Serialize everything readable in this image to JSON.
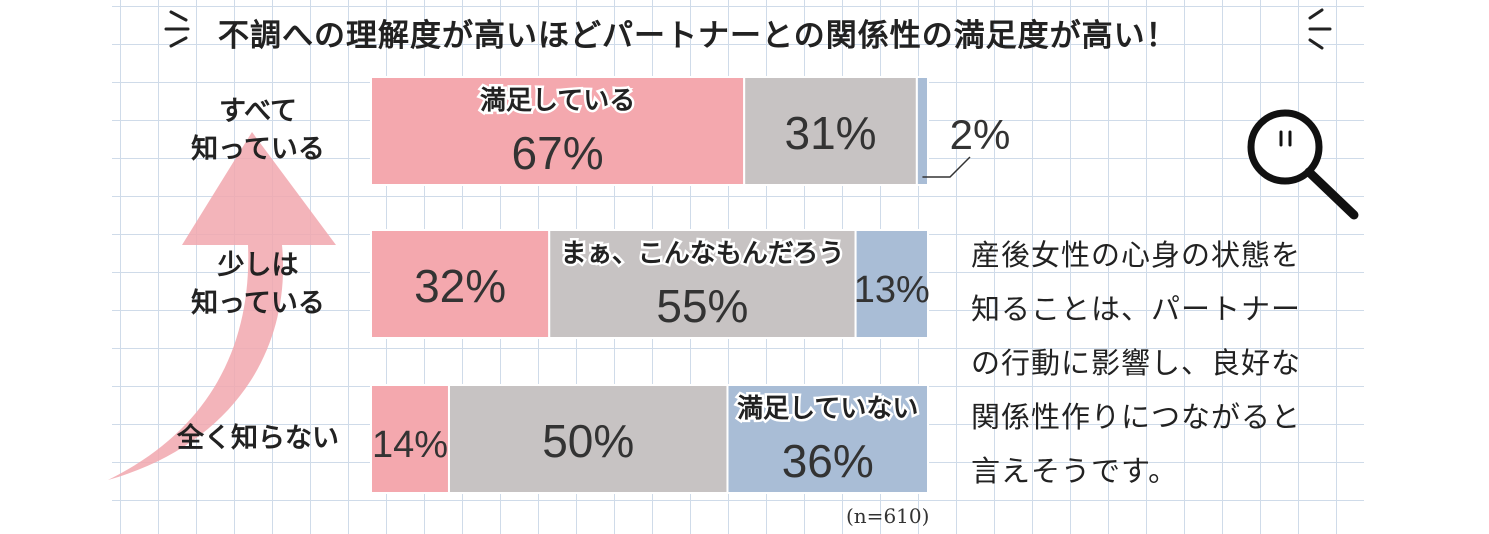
{
  "headline": "不調への理解度が高いほどパートナーとの関係性の満足度が高い！",
  "note": {
    "lines": [
      "産後女性の心身の状態を",
      "知ることは、パートナー",
      "の行動に影響し、良好な",
      "関係性作りにつながると",
      "言えそうです。"
    ]
  },
  "sample_size": "(n=610)",
  "icons": [
    "zigzag-left-icon",
    "zigzag-right-icon",
    "magnifier-icon",
    "up-arrow-icon"
  ],
  "colors": {
    "satisfied": "#f4a8ae",
    "neutral": "#c7c3c3",
    "unsatisfied": "#a9bdd6",
    "arrow": "#f1a7ae"
  },
  "chart_data": {
    "type": "bar",
    "orientation": "horizontal",
    "stacked": true,
    "categories": [
      "すべて\n知っている",
      "少しは\n知っている",
      "全く知らない"
    ],
    "category_lines": [
      [
        "すべて",
        "知っている"
      ],
      [
        "少しは",
        "知っている"
      ],
      [
        "全く知らない"
      ]
    ],
    "series": [
      {
        "name": "満足している",
        "values": [
          67,
          32,
          14
        ],
        "labels": [
          "67%",
          "32%",
          "14%"
        ],
        "color": "#f4a8ae"
      },
      {
        "name": "まぁ、こんなもんだろう",
        "values": [
          31,
          55,
          50
        ],
        "labels": [
          "31%",
          "55%",
          "50%"
        ],
        "color": "#c7c3c3"
      },
      {
        "name": "満足していない",
        "values": [
          2,
          13,
          36
        ],
        "labels": [
          "2%",
          "13%",
          "36%"
        ],
        "color": "#a9bdd6"
      }
    ],
    "xlim": [
      0,
      100
    ],
    "unit": "%"
  }
}
